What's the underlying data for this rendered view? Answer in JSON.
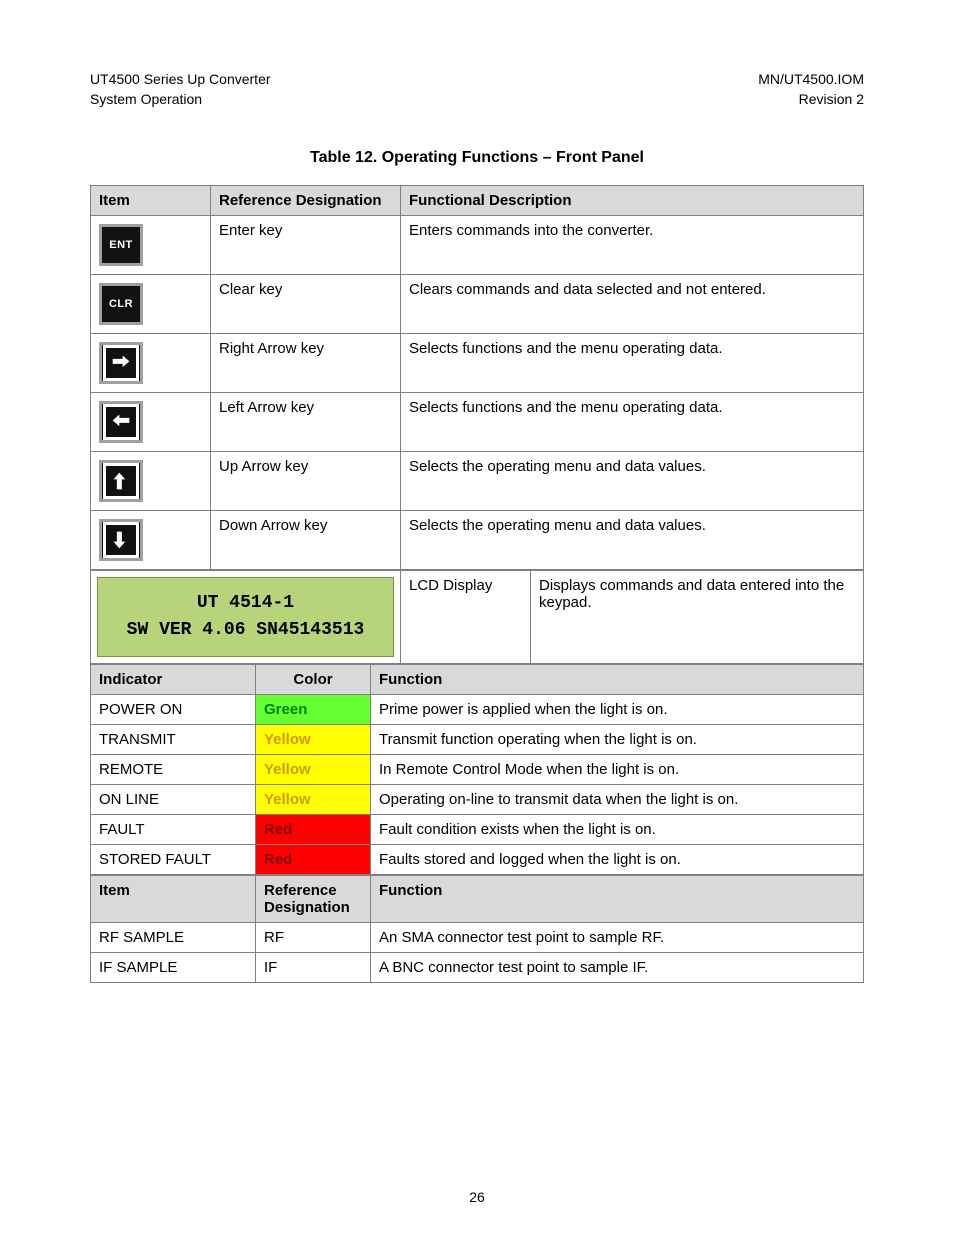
{
  "header": {
    "left_line1": "UT4500 Series Up Converter",
    "left_line2": "System Operation",
    "right_line1": "MN/UT4500.IOM",
    "right_line2": "Revision 2"
  },
  "caption": "Table 12.  Operating Functions – Front Panel",
  "table1": {
    "headers": [
      "Item",
      "Reference Designation",
      "Functional Description"
    ],
    "rows": [
      {
        "key_label": "ENT",
        "key_type": "text",
        "ref": "Enter key",
        "desc": "Enters commands into the converter."
      },
      {
        "key_label": "CLR",
        "key_type": "text",
        "ref": "Clear key",
        "desc": "Clears commands and data selected and not entered."
      },
      {
        "key_label": "→",
        "key_type": "right",
        "ref": "Right Arrow key",
        "desc": "Selects functions and the menu operating data."
      },
      {
        "key_label": "←",
        "key_type": "left",
        "ref": "Left Arrow key",
        "desc": "Selects functions and the menu operating data."
      },
      {
        "key_label": "↑",
        "key_type": "up",
        "ref": "Up Arrow key",
        "desc": "Selects the operating menu and data values."
      },
      {
        "key_label": "↓",
        "key_type": "down",
        "ref": "Down Arrow key",
        "desc": "Selects the operating menu and data values."
      }
    ],
    "lcd_line1": "UT 4514-1",
    "lcd_line2": "SW VER 4.06 SN45143513",
    "lcd_ref": "LCD Display",
    "lcd_desc": "Displays commands and data entered into the keypad."
  },
  "table2": {
    "headers": [
      "Indicator",
      "Color",
      "Function"
    ],
    "rows": [
      {
        "ind": "POWER ON",
        "color": "Green",
        "bg": "#66ff33",
        "fg": "#008000",
        "func": "Prime power is applied when the light is on."
      },
      {
        "ind": "TRANSMIT",
        "color": "Yellow",
        "bg": "#ffff00",
        "fg": "#cc9900",
        "func": "Transmit function operating when the light is on."
      },
      {
        "ind": "REMOTE",
        "color": "Yellow",
        "bg": "#ffff00",
        "fg": "#cc9900",
        "func": "In Remote Control Mode when the light is on."
      },
      {
        "ind": "ON LINE",
        "color": "Yellow",
        "bg": "#ffff00",
        "fg": "#cc9900",
        "func": "Operating on-line to transmit data when the light is on."
      },
      {
        "ind": "FAULT",
        "color": "Red",
        "bg": "#ff0000",
        "fg": "#800000",
        "func": "Fault condition exists when the light is on."
      },
      {
        "ind": "STORED FAULT",
        "color": "Red",
        "bg": "#ff0000",
        "fg": "#800000",
        "func": "Faults stored and logged when the light is on."
      }
    ]
  },
  "table3": {
    "headers": [
      "Item",
      "Reference Designation",
      "Function"
    ],
    "rows": [
      {
        "item": "RF SAMPLE",
        "ref": "RF",
        "func": "An SMA connector test point to sample RF."
      },
      {
        "item": "IF SAMPLE",
        "ref": "IF",
        "func": "A BNC connector test point to sample IF."
      }
    ]
  },
  "page_number": "26",
  "colors": {
    "header_bg": "#d9d9d9",
    "border": "#808080",
    "lcd_bg": "#b8d47a",
    "key_bg": "#111111",
    "key_border": "#a0a0a0"
  }
}
